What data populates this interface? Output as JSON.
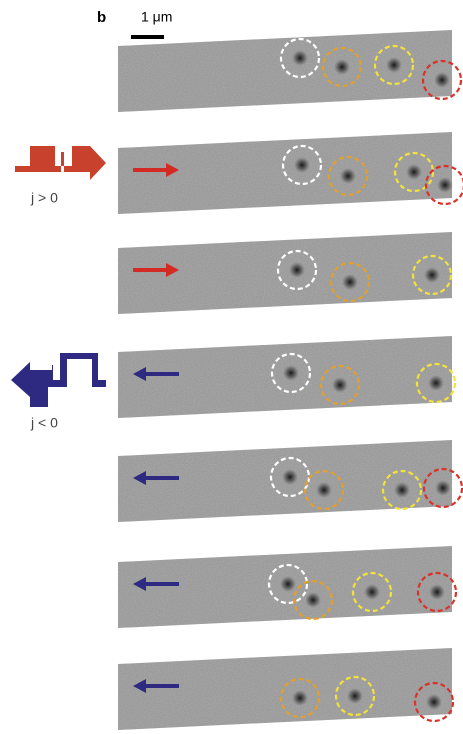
{
  "panel_label": "b",
  "scale_bar": "1 μm",
  "labels": {
    "positive": "j > 0",
    "negative": "j < 0"
  }
}
